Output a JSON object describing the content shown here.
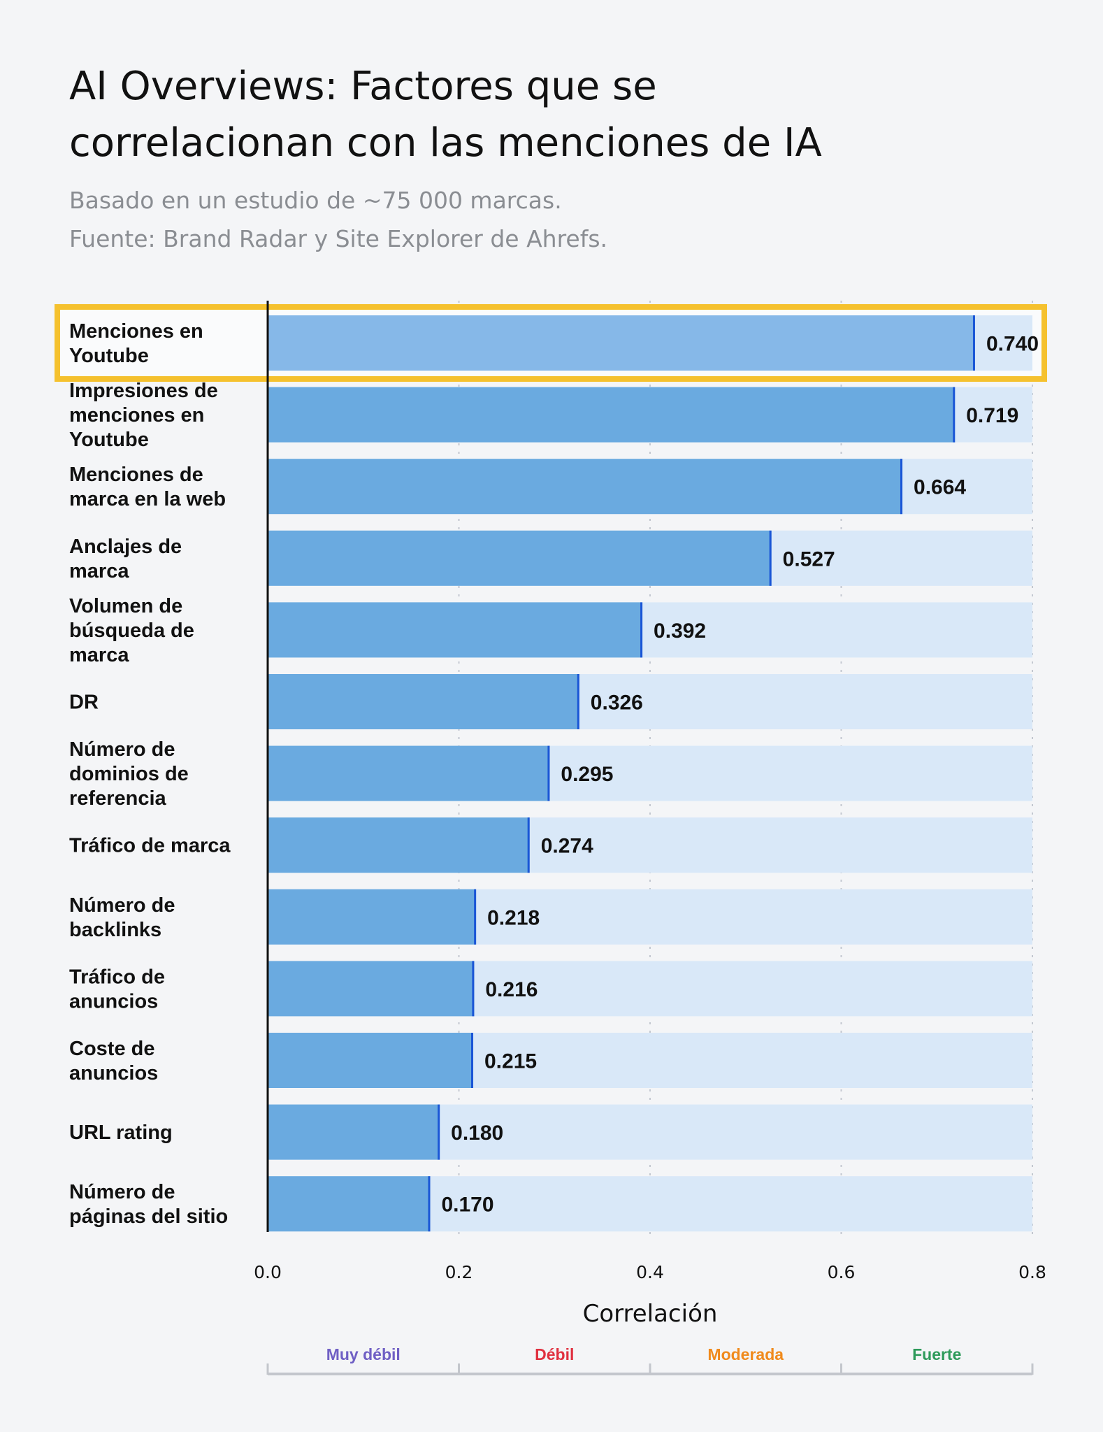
{
  "chart_data": {
    "type": "bar",
    "orientation": "horizontal",
    "title": [
      "AI Overviews: Factores que se",
      "correlacionan con las menciones de IA"
    ],
    "subtitle": [
      "Basado en un estudio de ~75 000 marcas.",
      "Fuente: Brand Radar y Site Explorer de Ahrefs."
    ],
    "xlabel": "Correlación",
    "xlim": [
      0,
      0.8
    ],
    "xticks": [
      "0.0",
      "0.2",
      "0.4",
      "0.6",
      "0.8"
    ],
    "grid": "vertical dotted",
    "categories": [
      [
        "Menciones en",
        "Youtube"
      ],
      [
        "Impresiones de",
        "menciones en",
        "Youtube"
      ],
      [
        "Menciones de",
        "marca en la web"
      ],
      [
        "Anclajes de",
        "marca"
      ],
      [
        "Volumen de",
        "búsqueda de",
        "marca"
      ],
      [
        "DR"
      ],
      [
        "Número de",
        "dominios de",
        "referencia"
      ],
      [
        "Tráfico de marca"
      ],
      [
        "Número de",
        "backlinks"
      ],
      [
        "Tráfico de",
        "anuncios"
      ],
      [
        "Coste de",
        "anuncios"
      ],
      [
        "URL rating"
      ],
      [
        "Número de",
        "páginas del sitio"
      ]
    ],
    "values": [
      0.74,
      0.719,
      0.664,
      0.527,
      0.392,
      0.326,
      0.295,
      0.274,
      0.218,
      0.216,
      0.215,
      0.18,
      0.17
    ],
    "value_labels": [
      "0.740",
      "0.719",
      "0.664",
      "0.527",
      "0.392",
      "0.326",
      "0.295",
      "0.274",
      "0.218",
      "0.216",
      "0.215",
      "0.180",
      "0.170"
    ],
    "highlighted_index": 0,
    "bands": [
      {
        "label": "Muy débil",
        "range": [
          0,
          0.2
        ],
        "color": "#6f5fc4"
      },
      {
        "label": "Débil",
        "range": [
          0.2,
          0.4
        ],
        "color": "#e0303f"
      },
      {
        "label": "Moderada",
        "range": [
          0.4,
          0.6
        ],
        "color": "#f08a1c"
      },
      {
        "label": "Fuerte",
        "range": [
          0.6,
          0.8
        ],
        "color": "#2e9a5a"
      }
    ],
    "colors": {
      "bar": "#6aaae0",
      "bar_highlight": "#86b8e8",
      "track": "#d9e8f8",
      "bar_end": "#1a56d6",
      "highlight_border": "#f5c12e"
    }
  }
}
